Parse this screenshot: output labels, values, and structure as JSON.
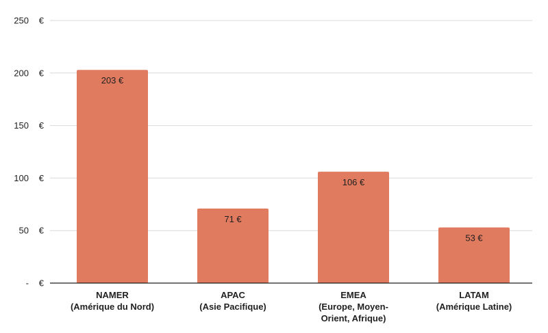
{
  "chart_data": {
    "type": "bar",
    "categories": [
      [
        "NAMER",
        "(Amérique du Nord)"
      ],
      [
        "APAC",
        "(Asie Pacifique)"
      ],
      [
        "EMEA",
        "(Europe, Moyen-",
        "Orient, Afrique)"
      ],
      [
        "LATAM",
        "(Amérique Latine)"
      ]
    ],
    "values": [
      203,
      71,
      106,
      53
    ],
    "data_labels": [
      "203  €",
      "71  €",
      "106  €",
      "53  €"
    ],
    "yticks": [
      {
        "value": 0,
        "label": "-",
        "unit": "€"
      },
      {
        "value": 50,
        "label": "50",
        "unit": "€"
      },
      {
        "value": 100,
        "label": "100",
        "unit": "€"
      },
      {
        "value": 150,
        "label": "150",
        "unit": "€"
      },
      {
        "value": 200,
        "label": "200",
        "unit": "€"
      },
      {
        "value": 250,
        "label": "250",
        "unit": "€"
      }
    ],
    "ylim": [
      0,
      250
    ],
    "grid": true,
    "title": "",
    "xlabel": "",
    "ylabel": "",
    "colors": {
      "bar": "#e07b5f",
      "grid": "#d9d9d9",
      "axis": "#1f1f1f",
      "text": "#1f1f1f"
    }
  }
}
